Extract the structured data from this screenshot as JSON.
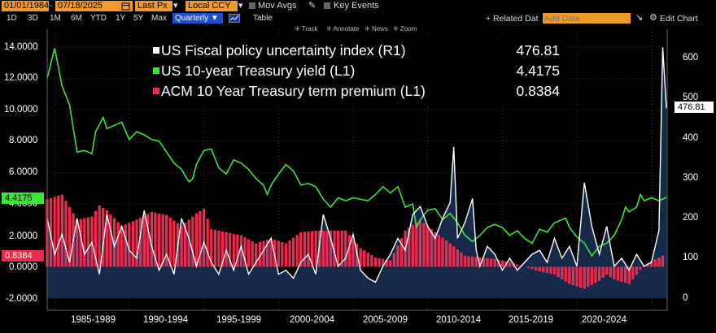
{
  "toolbar": {
    "start_date": "01/01/1984",
    "end_date": "07/18/2025",
    "price_field": "Last Px",
    "currency": "Local CCY",
    "mov_avgs": "Mov Avgs",
    "key_events": "Key Events",
    "related_data": "+ Related Dat",
    "add_data_placeholder": "Add Data",
    "edit_chart": "Edit Chart",
    "ranges": [
      "1D",
      "3D",
      "1M",
      "6M",
      "YTD",
      "1Y",
      "5Y",
      "Max"
    ],
    "frequency": "Quarterly",
    "table_label": "Table",
    "chart_tools": [
      "Track",
      "Annotate",
      "News",
      "Zoom"
    ]
  },
  "colors": {
    "background": "#000000",
    "uncertainty_line": "#ffffff",
    "uncertainty_area": "#162c4e",
    "treasury_yield": "#39e636",
    "term_premium": "#ee2a4c",
    "accent_orange": "#f09a2a"
  },
  "legend": [
    {
      "label": "US Fiscal policy uncertainty index (R1)",
      "value": "476.81",
      "color": "#ffffff"
    },
    {
      "label": "US 10-year Treasury yield (L1)",
      "value": "4.4175",
      "color": "#39e636"
    },
    {
      "label": "ACM 10 Year Treasury term premium (L1)",
      "value": "0.8384",
      "color": "#ee2a4c"
    }
  ],
  "last_value_tags": {
    "yield": "4.4175",
    "premium": "0.8384",
    "uncertainty": "476.81"
  },
  "chart_data": {
    "type": "line",
    "frequency": "Quarterly",
    "x_range": [
      "1984-01-01",
      "2025-07-18"
    ],
    "left_axis": {
      "ylim": [
        -2.5,
        15.5
      ],
      "ticks": [
        "-2.0000",
        "0.0000",
        "2.0000",
        "4.0000",
        "6.0000",
        "8.0000",
        "10.0000",
        "12.0000",
        "14.0000"
      ]
    },
    "right_axis": {
      "ylim": [
        -20,
        680
      ],
      "ticks": [
        "0",
        "100",
        "200",
        "300",
        "400",
        "500",
        "600"
      ]
    },
    "x_tick_labels": [
      "1985-1989",
      "1990-1994",
      "1995-1999",
      "2000-2004",
      "2005-2009",
      "2010-2014",
      "2015-2019",
      "2020-2024"
    ],
    "grid": "dotted",
    "legend_position": "top-center",
    "series": [
      {
        "name": "US 10-year Treasury yield (L1)",
        "axis": "left",
        "x": [
          1984.0,
          1984.5,
          1985.0,
          1985.5,
          1986.0,
          1986.5,
          1987.0,
          1987.25,
          1987.75,
          1988.0,
          1988.5,
          1989.0,
          1989.5,
          1990.0,
          1990.5,
          1991.0,
          1991.5,
          1992.0,
          1992.5,
          1993.0,
          1993.5,
          1993.75,
          1994.0,
          1994.5,
          1995.0,
          1995.5,
          1996.0,
          1996.5,
          1997.0,
          1997.5,
          1998.0,
          1998.5,
          1998.75,
          1999.0,
          1999.5,
          2000.0,
          2000.5,
          2001.0,
          2001.5,
          2002.0,
          2002.5,
          2003.0,
          2003.5,
          2004.0,
          2004.5,
          2005.0,
          2005.5,
          2006.0,
          2006.5,
          2007.0,
          2007.5,
          2008.0,
          2008.5,
          2008.75,
          2009.0,
          2009.5,
          2010.0,
          2010.5,
          2011.0,
          2011.5,
          2012.0,
          2012.5,
          2013.0,
          2013.5,
          2014.0,
          2014.5,
          2015.0,
          2015.5,
          2016.0,
          2016.5,
          2017.0,
          2017.5,
          2018.0,
          2018.75,
          2019.0,
          2019.5,
          2020.0,
          2020.5,
          2021.0,
          2021.5,
          2022.0,
          2022.5,
          2022.75,
          2023.0,
          2023.5,
          2023.75,
          2024.0,
          2024.5,
          2025.0,
          2025.5
        ],
        "values": [
          12.0,
          13.9,
          11.5,
          10.3,
          7.3,
          7.4,
          7.2,
          8.6,
          9.5,
          8.8,
          9.0,
          9.2,
          8.1,
          8.6,
          8.4,
          8.1,
          8.0,
          7.3,
          6.6,
          6.2,
          5.4,
          5.6,
          6.5,
          7.4,
          7.5,
          6.3,
          5.9,
          6.8,
          6.6,
          6.2,
          5.6,
          5.2,
          4.6,
          5.2,
          5.9,
          6.5,
          6.1,
          5.2,
          5.3,
          5.1,
          4.3,
          3.8,
          4.4,
          4.2,
          4.4,
          4.3,
          4.2,
          4.6,
          5.1,
          4.7,
          5.1,
          3.8,
          4.0,
          2.5,
          3.0,
          3.6,
          3.7,
          3.0,
          3.4,
          2.8,
          2.0,
          1.6,
          2.0,
          2.5,
          2.7,
          2.5,
          2.0,
          2.3,
          1.8,
          1.5,
          2.4,
          2.2,
          2.8,
          3.1,
          2.5,
          1.9,
          1.5,
          0.7,
          1.3,
          1.5,
          2.0,
          3.0,
          3.8,
          3.5,
          3.8,
          4.6,
          4.2,
          4.4,
          4.2,
          4.42
        ]
      },
      {
        "name": "ACM 10 Year Treasury term premium (L1)",
        "axis": "left",
        "x": [
          1984.0,
          1985.0,
          1986.0,
          1987.0,
          1987.5,
          1988.0,
          1989.0,
          1990.0,
          1991.0,
          1992.0,
          1993.0,
          1994.0,
          1994.5,
          1995.0,
          1996.0,
          1997.0,
          1998.0,
          1999.0,
          2000.0,
          2001.0,
          2002.0,
          2003.0,
          2004.0,
          2005.0,
          2006.0,
          2007.0,
          2008.0,
          2009.0,
          2010.0,
          2011.0,
          2012.0,
          2013.0,
          2014.0,
          2015.0,
          2016.0,
          2017.0,
          2018.0,
          2019.0,
          2020.0,
          2021.0,
          2021.5,
          2022.0,
          2023.0,
          2024.0,
          2025.0,
          2025.5
        ],
        "values": [
          4.3,
          4.6,
          3.0,
          3.2,
          3.9,
          3.6,
          2.6,
          3.0,
          3.5,
          3.3,
          2.6,
          3.4,
          3.7,
          2.4,
          2.2,
          2.0,
          1.5,
          1.8,
          1.5,
          2.2,
          2.3,
          2.3,
          2.3,
          1.2,
          0.6,
          0.4,
          2.3,
          3.0,
          2.2,
          1.5,
          0.7,
          0.6,
          0.5,
          0.3,
          0.0,
          -0.3,
          -0.5,
          -1.1,
          -1.4,
          -0.9,
          -0.5,
          -0.8,
          -1.1,
          0.1,
          0.6,
          0.84
        ]
      },
      {
        "name": "US Fiscal policy uncertainty index (R1)",
        "axis": "right",
        "x": [
          1984.0,
          1984.5,
          1985.0,
          1985.5,
          1986.0,
          1986.5,
          1987.0,
          1987.5,
          1988.0,
          1988.5,
          1989.0,
          1989.5,
          1990.0,
          1990.5,
          1991.0,
          1991.5,
          1992.0,
          1992.5,
          1993.0,
          1993.5,
          1994.0,
          1994.5,
          1995.0,
          1995.5,
          1996.0,
          1996.5,
          1997.0,
          1997.5,
          1998.0,
          1998.5,
          1999.0,
          1999.5,
          2000.0,
          2000.5,
          2001.0,
          2001.5,
          2002.0,
          2002.5,
          2003.0,
          2003.5,
          2004.0,
          2004.5,
          2005.0,
          2005.5,
          2006.0,
          2006.5,
          2007.0,
          2007.5,
          2008.0,
          2008.5,
          2009.0,
          2009.5,
          2010.0,
          2010.5,
          2011.0,
          2011.25,
          2011.5,
          2012.0,
          2012.5,
          2012.75,
          2013.0,
          2013.5,
          2014.0,
          2014.5,
          2015.0,
          2015.5,
          2016.0,
          2016.5,
          2017.0,
          2017.5,
          2018.0,
          2018.5,
          2019.0,
          2019.5,
          2020.0,
          2020.5,
          2021.0,
          2021.5,
          2022.0,
          2022.5,
          2023.0,
          2023.5,
          2024.0,
          2024.5,
          2025.0,
          2025.25,
          2025.5
        ],
        "values": [
          200,
          110,
          160,
          90,
          200,
          110,
          140,
          60,
          210,
          130,
          180,
          120,
          100,
          220,
          130,
          70,
          110,
          60,
          200,
          150,
          80,
          140,
          90,
          60,
          120,
          70,
          130,
          60,
          90,
          120,
          150,
          60,
          70,
          50,
          90,
          110,
          60,
          210,
          150,
          80,
          100,
          160,
          70,
          50,
          40,
          80,
          110,
          150,
          120,
          210,
          230,
          180,
          150,
          200,
          240,
          380,
          150,
          190,
          250,
          120,
          80,
          130,
          110,
          70,
          100,
          70,
          90,
          110,
          120,
          90,
          150,
          100,
          130,
          80,
          290,
          180,
          110,
          180,
          80,
          100,
          70,
          110,
          80,
          90,
          170,
          630,
          476.81
        ]
      }
    ]
  }
}
